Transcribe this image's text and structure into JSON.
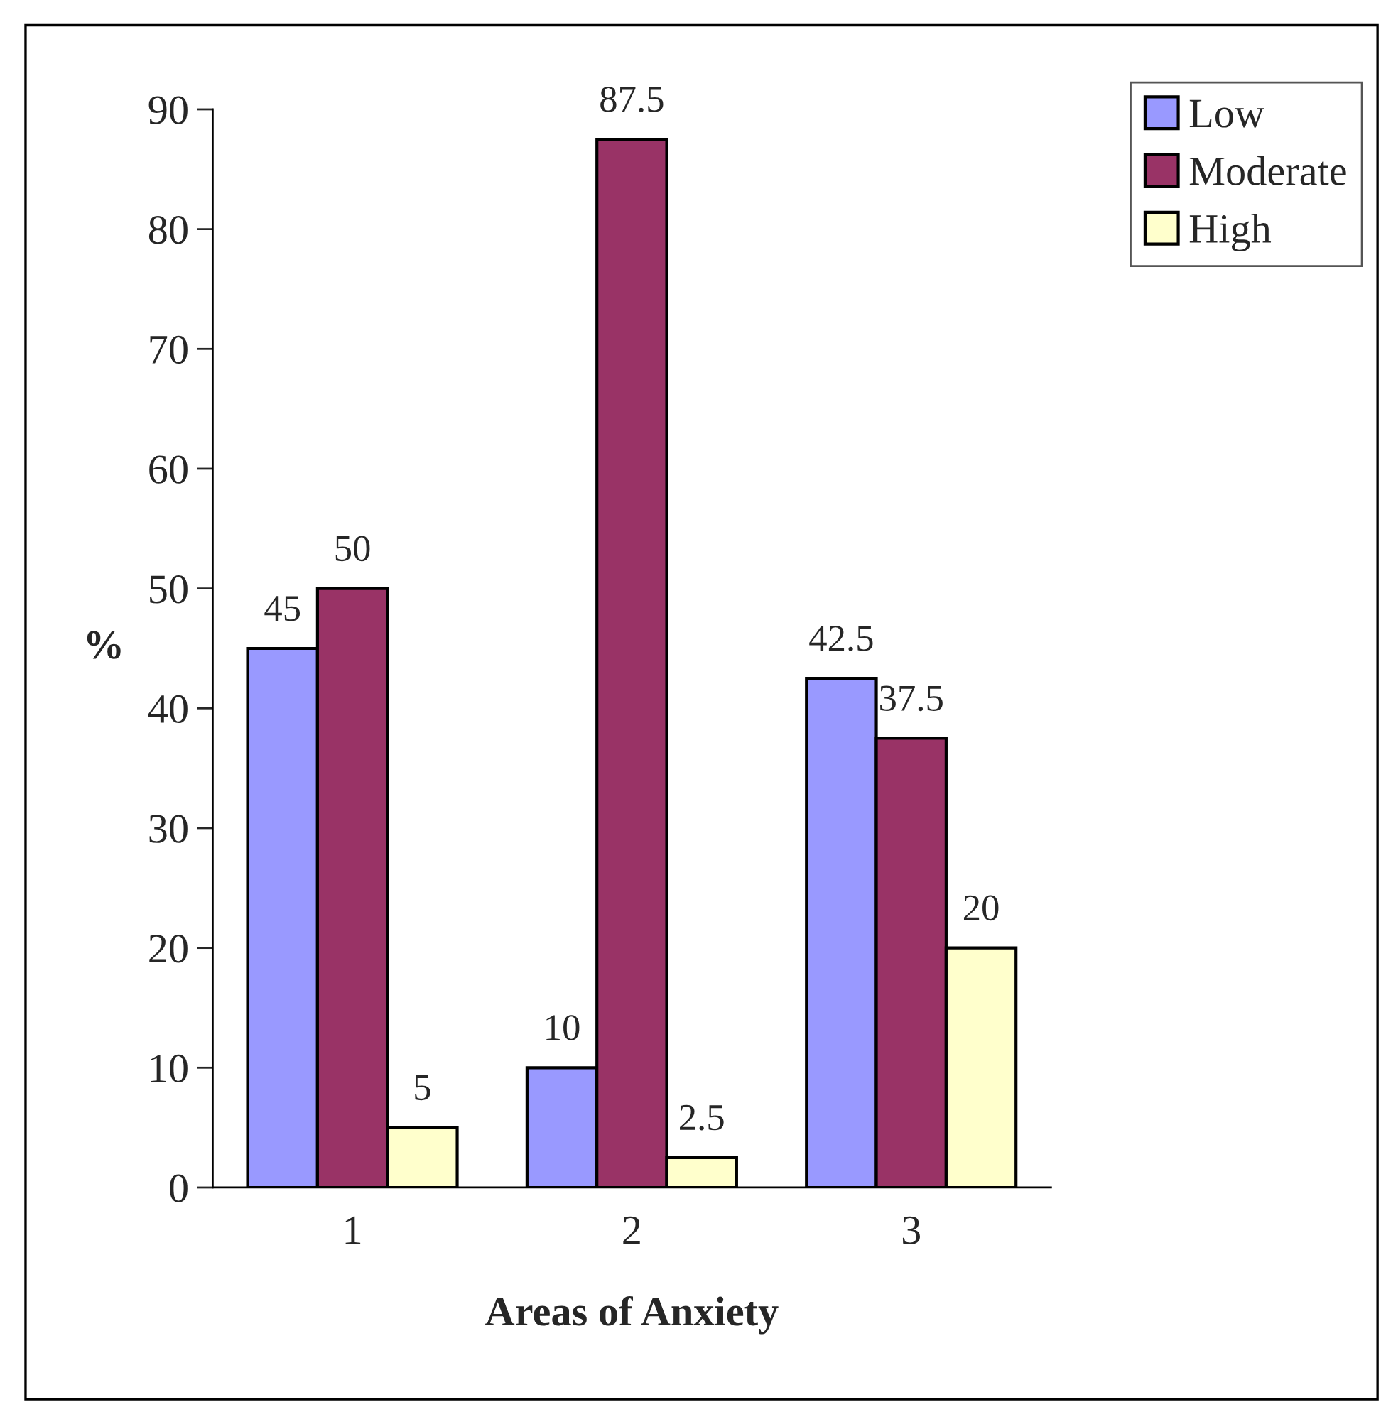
{
  "chart_data": {
    "type": "bar",
    "categories": [
      "1",
      "2",
      "3"
    ],
    "xlabel": "Areas of Anxiety",
    "ylabel": "%",
    "series": [
      {
        "name": "Low",
        "color": "#9999ff",
        "values": [
          45,
          10,
          42.5
        ]
      },
      {
        "name": "Moderate",
        "color": "#993366",
        "values": [
          50,
          87.5,
          37.5
        ]
      },
      {
        "name": "High",
        "color": "#ffffcc",
        "values": [
          5,
          2.5,
          20
        ]
      }
    ],
    "ylim": [
      0,
      90
    ],
    "yticks": [
      0,
      10,
      20,
      30,
      40,
      50,
      60,
      70,
      80,
      90
    ],
    "data_labels": true,
    "legend": "top right"
  }
}
